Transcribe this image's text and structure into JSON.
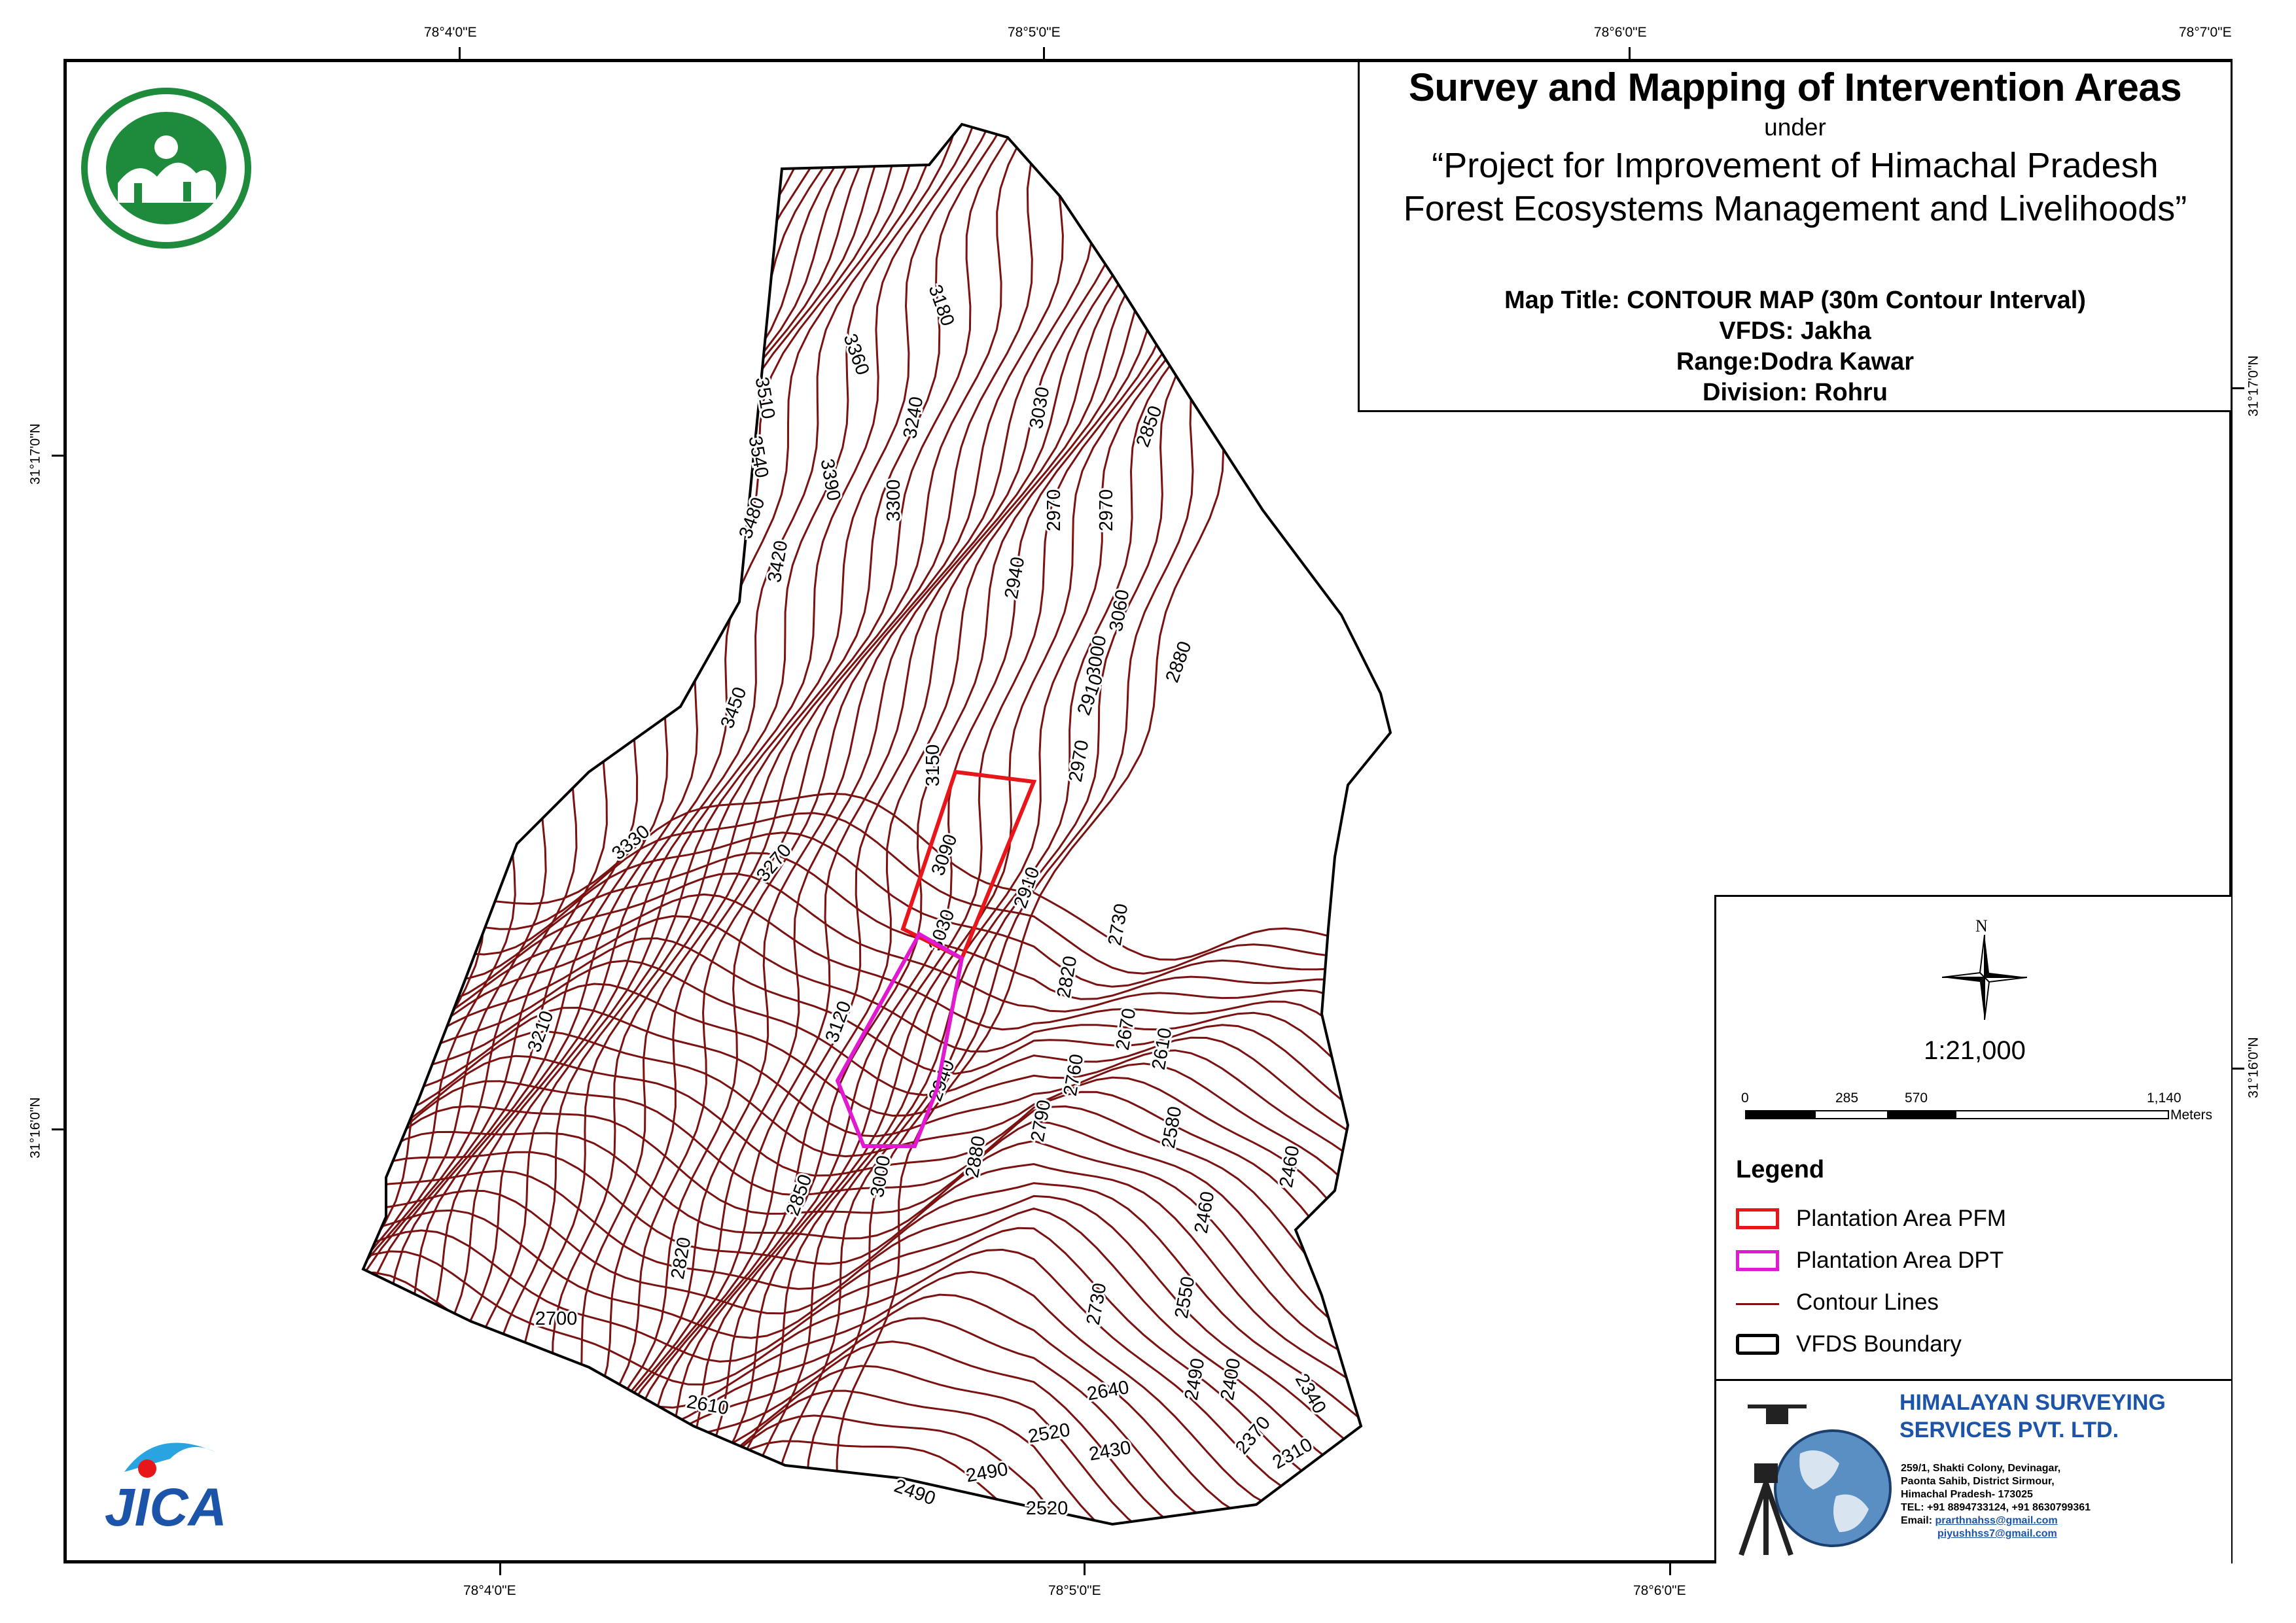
{
  "title": {
    "main": "Survey and Mapping of Intervention Areas",
    "under": "under",
    "project_line1": "“Project for Improvement of Himachal Pradesh",
    "project_line2": "Forest Ecosystems Management and Livelihoods”"
  },
  "info": {
    "map_title": "Map Title: CONTOUR MAP (30m Contour Interval)",
    "vfds": "VFDS: Jakha",
    "range": "Range:Dodra Kawar",
    "division": "Division: Rohru"
  },
  "coords": {
    "top": [
      "78°4'0\"E",
      "78°5'0\"E",
      "78°6'0\"E",
      "78°7'0\"E"
    ],
    "bottom": [
      "78°4'0\"E",
      "78°5'0\"E",
      "78°6'0\"E"
    ],
    "left": [
      "31°17'0\"N",
      "31°16'0\"N"
    ],
    "right": [
      "31°17'0\"N",
      "31°16'0\"N"
    ]
  },
  "north_arrow": {
    "label": "N",
    "icon": "compass-rose-icon"
  },
  "scale": {
    "ratio": "1:21,000",
    "ticks": [
      "0",
      "285",
      "570",
      "1,140"
    ],
    "unit": "Meters"
  },
  "legend": {
    "title": "Legend",
    "items": [
      {
        "label": "Plantation Area PFM",
        "color": "#e8161b",
        "kind": "outline"
      },
      {
        "label": "Plantation Area DPT",
        "color": "#e11ad2",
        "kind": "outline"
      },
      {
        "label": "Contour Lines",
        "color": "#7b1212",
        "kind": "line"
      },
      {
        "label": "VFDS Boundary",
        "color": "#000000",
        "kind": "outline"
      }
    ]
  },
  "company": {
    "name_line1": "HIMALAYAN SURVEYING",
    "name_line2": "SERVICES PVT. LTD.",
    "address_line1": "259/1, Shakti Colony, Devinagar,",
    "address_line2": "Paonta Sahib, District Sirmour,",
    "address_line3": "Himachal Pradesh- 173025",
    "tel": "TEL: +91 8894733124, +91 8630799361",
    "email_label": "Email:",
    "email1": "prarthnahss@gmail.com",
    "email2": "piyushhss7@gmail.com",
    "name_color": "#1b54a8"
  },
  "logos": {
    "forest_dept": "hp-forest-department-logo",
    "jica": "JICA"
  },
  "contour_labels": [
    "3180",
    "3360",
    "3510",
    "3540",
    "3390",
    "3240",
    "3300",
    "3030",
    "2850",
    "3480",
    "3420",
    "2970",
    "2970",
    "2940",
    "3060",
    "3000",
    "2880",
    "2910",
    "3450",
    "3150",
    "2970",
    "3330",
    "3270",
    "3090",
    "2910",
    "3030",
    "2730",
    "2820",
    "3120",
    "2670",
    "2760",
    "2610",
    "3210",
    "2940",
    "2790",
    "2580",
    "2880",
    "3000",
    "2850",
    "2460",
    "2460",
    "2820",
    "2550",
    "2730",
    "2700",
    "2490",
    "2400",
    "2640",
    "2340",
    "2610",
    "2370",
    "2520",
    "2430",
    "2310",
    "2490",
    "2490",
    "2520"
  ],
  "map_colors": {
    "contour": "#7b1212",
    "pfm": "#e8161b",
    "dpt": "#e11ad2",
    "boundary": "#000000"
  }
}
